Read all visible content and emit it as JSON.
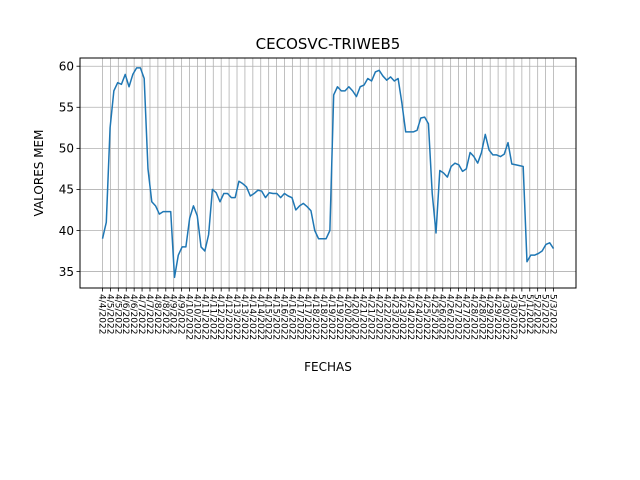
{
  "chart_data": {
    "type": "line",
    "title": "CECOSVC-TRIWEB5",
    "xlabel": "FECHAS",
    "ylabel": "VALORES MEM",
    "ylim": [
      33,
      61
    ],
    "yticks": [
      35,
      40,
      45,
      50,
      55,
      60
    ],
    "grid": true,
    "x_tick_labels": [
      "4/4/2022",
      "4/5/2022",
      "4/5/2022",
      "4/6/2022",
      "4/6/2022",
      "4/7/2022",
      "4/7/2022",
      "4/8/2022",
      "4/8/2022",
      "4/9/2022",
      "4/9/2022",
      "4/10/2022",
      "4/10/2022",
      "4/11/2022",
      "4/11/2022",
      "4/12/2022",
      "4/12/2022",
      "4/13/2022",
      "4/13/2022",
      "4/14/2022",
      "4/14/2022",
      "4/15/2022",
      "4/15/2022",
      "4/16/2022",
      "4/16/2022",
      "4/17/2022",
      "4/17/2022",
      "4/18/2022",
      "4/18/2022",
      "4/19/2022",
      "4/19/2022",
      "4/20/2022",
      "4/20/2022",
      "4/21/2022",
      "4/21/2022",
      "4/22/2022",
      "4/22/2022",
      "4/23/2022",
      "4/23/2022",
      "4/24/2022",
      "4/24/2022",
      "4/25/2022",
      "4/25/2022",
      "4/26/2022",
      "4/26/2022",
      "4/27/2022",
      "4/27/2022",
      "4/28/2022",
      "4/28/2022",
      "4/29/2022",
      "4/29/2022",
      "4/30/2022",
      "4/30/2022",
      "5/1/2022",
      "5/1/2022",
      "5/2/2022",
      "5/2/2022",
      "5/3/2022"
    ],
    "series": [
      {
        "color": "#1f77b4",
        "values": [
          39.0,
          41.0,
          52.5,
          57.0,
          58.0,
          57.8,
          59.0,
          57.5,
          59.0,
          59.8,
          59.8,
          58.5,
          47.5,
          43.5,
          43.0,
          42.0,
          42.3,
          42.3,
          42.3,
          34.3,
          37.0,
          38.0,
          38.0,
          41.5,
          43.0,
          41.8,
          38.0,
          37.5,
          39.5,
          45.0,
          44.6,
          43.5,
          44.5,
          44.5,
          44.0,
          44.0,
          46.0,
          45.7,
          45.3,
          44.2,
          44.5,
          44.9,
          44.8,
          44.0,
          44.6,
          44.5,
          44.5,
          44.0,
          44.5,
          44.2,
          44.0,
          42.5,
          43.0,
          43.3,
          42.9,
          42.4,
          40.0,
          39.0,
          39.0,
          39.0,
          40.0,
          56.5,
          57.5,
          57.0,
          57.0,
          57.5,
          57.0,
          56.3,
          57.5,
          57.7,
          58.5,
          58.2,
          59.3,
          59.5,
          58.8,
          58.3,
          58.7,
          58.2,
          58.5,
          55.5,
          52.0,
          52.0,
          52.0,
          52.2,
          53.7,
          53.8,
          53.0,
          44.5,
          39.7,
          47.3,
          47.0,
          46.5,
          47.8,
          48.2,
          48.0,
          47.2,
          47.5,
          49.5,
          49.0,
          48.2,
          49.5,
          51.7,
          49.8,
          49.2,
          49.2,
          49.0,
          49.3,
          50.7,
          48.1,
          48.0,
          47.9,
          47.8,
          36.2,
          37.0,
          37.0,
          37.2,
          37.5,
          38.3,
          38.5,
          37.8
        ]
      }
    ]
  }
}
